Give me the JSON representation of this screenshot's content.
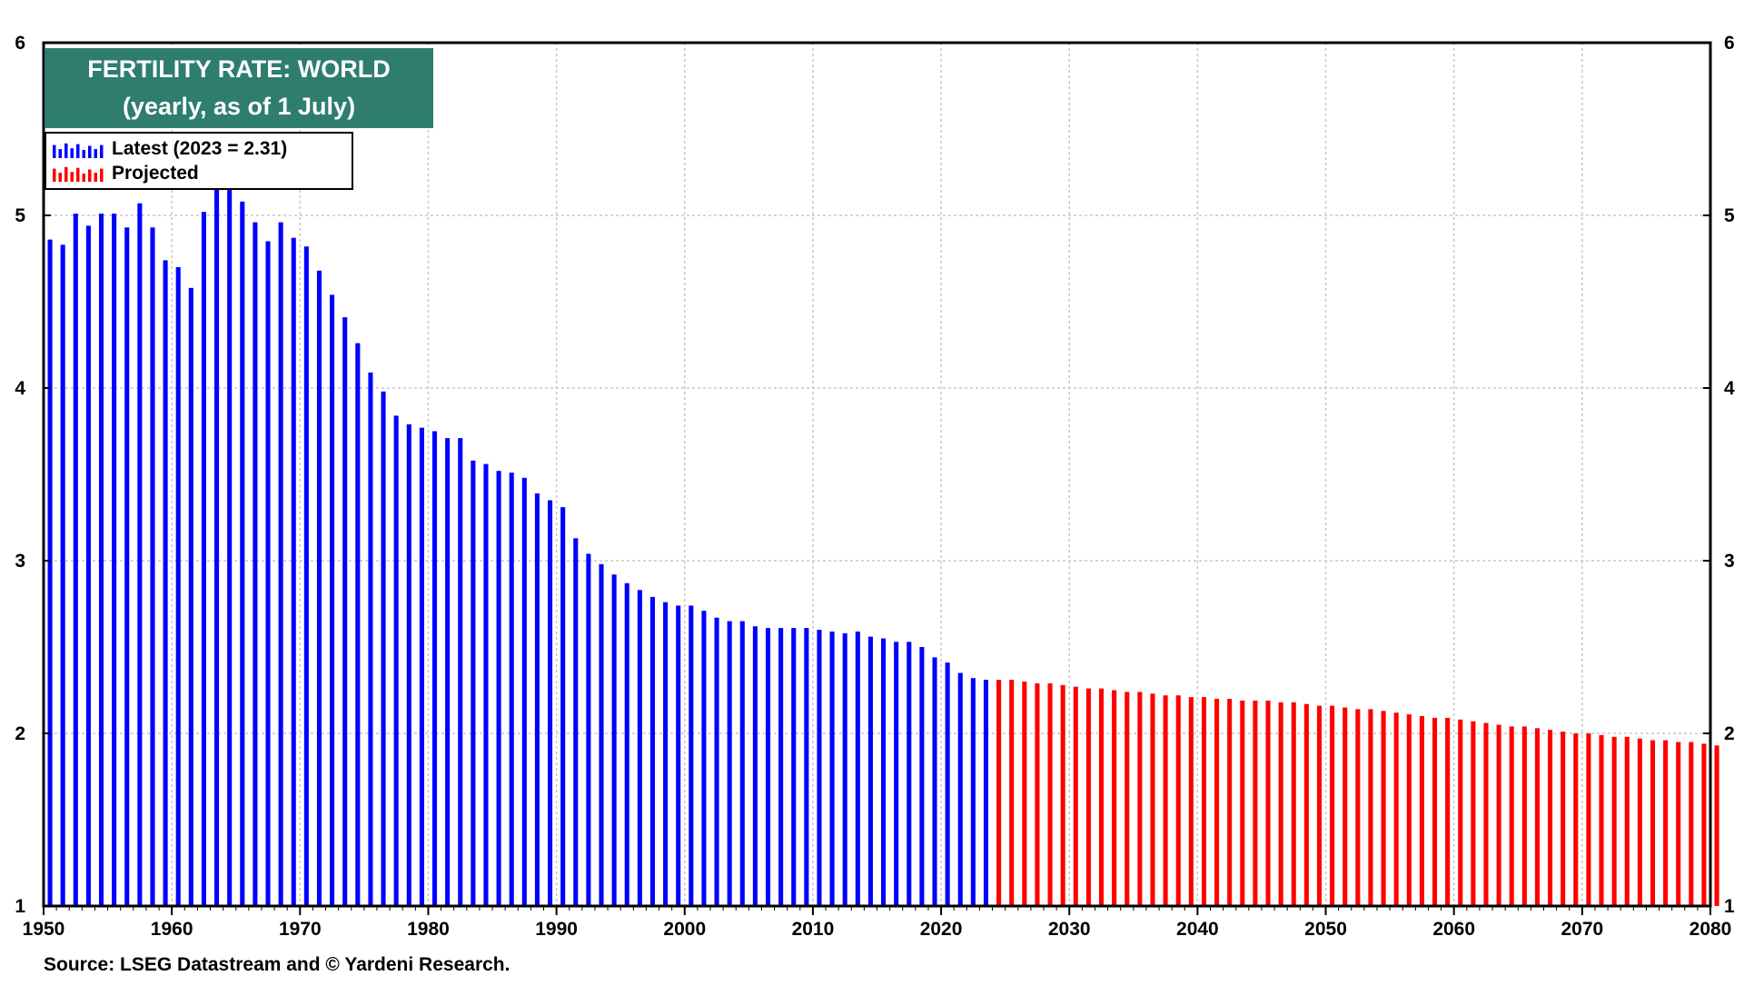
{
  "chart_data": {
    "type": "bar",
    "title": "FERTILITY RATE: WORLD",
    "subtitle": "(yearly, as of 1 July)",
    "xlabel": "",
    "ylabel": "",
    "source": "Source: LSEG Datastream and © Yardeni Research.",
    "xlim": [
      1950,
      2080
    ],
    "ylim": [
      1,
      6
    ],
    "x_ticks": [
      "1950",
      "1960",
      "1970",
      "1980",
      "1990",
      "2000",
      "2010",
      "2020",
      "2030",
      "2040",
      "2050",
      "2060",
      "2070",
      "2080"
    ],
    "y_ticks": [
      "1",
      "2",
      "3",
      "4",
      "5",
      "6"
    ],
    "grid": true,
    "legend_position": "top-left",
    "series": [
      {
        "name": "Latest (2023 = 2.31)",
        "color": "#0000ff",
        "x": [
          1950,
          1951,
          1952,
          1953,
          1954,
          1955,
          1956,
          1957,
          1958,
          1959,
          1960,
          1961,
          1962,
          1963,
          1964,
          1965,
          1966,
          1967,
          1968,
          1969,
          1970,
          1971,
          1972,
          1973,
          1974,
          1975,
          1976,
          1977,
          1978,
          1979,
          1980,
          1981,
          1982,
          1983,
          1984,
          1985,
          1986,
          1987,
          1988,
          1989,
          1990,
          1991,
          1992,
          1993,
          1994,
          1995,
          1996,
          1997,
          1998,
          1999,
          2000,
          2001,
          2002,
          2003,
          2004,
          2005,
          2006,
          2007,
          2008,
          2009,
          2010,
          2011,
          2012,
          2013,
          2014,
          2015,
          2016,
          2017,
          2018,
          2019,
          2020,
          2021,
          2022,
          2023
        ],
        "values": [
          4.86,
          4.83,
          5.01,
          4.94,
          5.01,
          5.01,
          4.93,
          5.07,
          4.93,
          4.74,
          4.7,
          4.58,
          5.02,
          5.19,
          5.16,
          5.08,
          4.96,
          4.85,
          4.96,
          4.87,
          4.82,
          4.68,
          4.54,
          4.41,
          4.26,
          4.09,
          3.98,
          3.84,
          3.79,
          3.77,
          3.75,
          3.71,
          3.71,
          3.58,
          3.56,
          3.52,
          3.51,
          3.48,
          3.39,
          3.35,
          3.31,
          3.13,
          3.04,
          2.98,
          2.92,
          2.87,
          2.83,
          2.79,
          2.76,
          2.74,
          2.74,
          2.71,
          2.67,
          2.65,
          2.65,
          2.62,
          2.61,
          2.61,
          2.61,
          2.61,
          2.6,
          2.59,
          2.58,
          2.59,
          2.56,
          2.55,
          2.53,
          2.53,
          2.5,
          2.44,
          2.41,
          2.35,
          2.32,
          2.31
        ]
      },
      {
        "name": "Projected",
        "color": "#ff0000",
        "x": [
          2024,
          2025,
          2026,
          2027,
          2028,
          2029,
          2030,
          2031,
          2032,
          2033,
          2034,
          2035,
          2036,
          2037,
          2038,
          2039,
          2040,
          2041,
          2042,
          2043,
          2044,
          2045,
          2046,
          2047,
          2048,
          2049,
          2050,
          2051,
          2052,
          2053,
          2054,
          2055,
          2056,
          2057,
          2058,
          2059,
          2060,
          2061,
          2062,
          2063,
          2064,
          2065,
          2066,
          2067,
          2068,
          2069,
          2070,
          2071,
          2072,
          2073,
          2074,
          2075,
          2076,
          2077,
          2078,
          2079,
          2080
        ],
        "values": [
          2.31,
          2.31,
          2.3,
          2.29,
          2.29,
          2.28,
          2.27,
          2.26,
          2.26,
          2.25,
          2.24,
          2.24,
          2.23,
          2.22,
          2.22,
          2.21,
          2.21,
          2.2,
          2.2,
          2.19,
          2.19,
          2.19,
          2.18,
          2.18,
          2.17,
          2.16,
          2.16,
          2.15,
          2.14,
          2.14,
          2.13,
          2.12,
          2.11,
          2.1,
          2.09,
          2.09,
          2.08,
          2.07,
          2.06,
          2.05,
          2.04,
          2.04,
          2.03,
          2.02,
          2.01,
          2.0,
          2.0,
          1.99,
          1.98,
          1.98,
          1.97,
          1.96,
          1.96,
          1.95,
          1.95,
          1.94,
          1.93
        ]
      }
    ]
  }
}
